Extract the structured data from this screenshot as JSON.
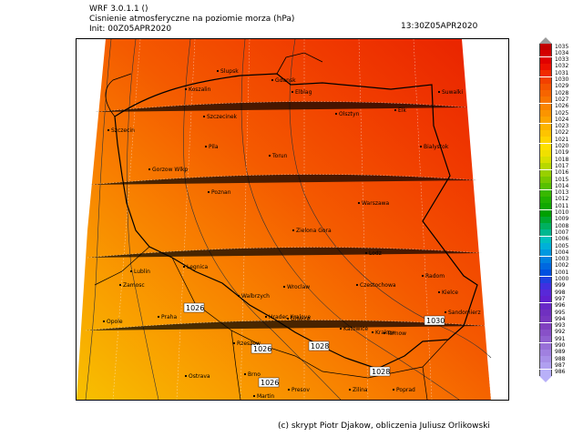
{
  "header": {
    "model": "WRF 3.0.1.1 ()",
    "title": "Cisnienie atmosferyczne na poziomie morza (hPa)",
    "init": "Init: 00Z05APR2020",
    "valid": "13:30Z05APR2020"
  },
  "footer": "(c) skrypt Piotr Djakow, obliczenia Juliusz Orlikowski",
  "isobar_labels": [
    "1026",
    "1026",
    "1028",
    "1026",
    "1028",
    "1030"
  ],
  "cities": [
    "Slupsk",
    "Koszalin",
    "Gdansk",
    "Elblag",
    "Suwalki",
    "Elk",
    "Olsztyn",
    "Szczecinek",
    "Szczecin",
    "Bialystok",
    "Pila",
    "Torun",
    "Gorzow Wlkp",
    "Poznan",
    "Warszawa",
    "Zielona Gora",
    "Lodz",
    "Radom",
    "Lublin",
    "Legnica",
    "Wroclaw",
    "Czestochowa",
    "Kielce",
    "Sandomierz",
    "Zamosc",
    "Walbrzych",
    "Opole",
    "Praha",
    "Hradec Kralove",
    "Gliwice",
    "Katowice",
    "Krakow",
    "Tarnow",
    "Rzeszow",
    "Ostrava",
    "Brno",
    "Zilina",
    "Poprad",
    "Presov",
    "Martin",
    "Trencin",
    "Kosice"
  ],
  "legend": {
    "levels": [
      1035,
      1034,
      1033,
      1032,
      1031,
      1030,
      1029,
      1028,
      1027,
      1026,
      1025,
      1024,
      1023,
      1022,
      1021,
      1020,
      1019,
      1018,
      1017,
      1016,
      1015,
      1014,
      1013,
      1012,
      1011,
      1010,
      1009,
      1008,
      1007,
      1006,
      1005,
      1004,
      1003,
      1002,
      1001,
      1000,
      999,
      998,
      997,
      996,
      995,
      994,
      993,
      992,
      991,
      990,
      989,
      988,
      987,
      986
    ],
    "colors": [
      "#c20000",
      "#d40000",
      "#e10000",
      "#ec1000",
      "#f02a00",
      "#f24000",
      "#f45400",
      "#f66400",
      "#f87400",
      "#fa8400",
      "#fb9400",
      "#fca400",
      "#fdb400",
      "#fec400",
      "#ffd400",
      "#ffe000",
      "#f0e000",
      "#d8e000",
      "#b8d800",
      "#98d000",
      "#78c800",
      "#58c000",
      "#38b800",
      "#20b000",
      "#10a800",
      "#00a000",
      "#00a830",
      "#00b060",
      "#00b890",
      "#00c0c0",
      "#00b0d8",
      "#0098e0",
      "#0080e0",
      "#0068e0",
      "#0050e0",
      "#2040e0",
      "#4030e0",
      "#5828d8",
      "#6020d0",
      "#6828c8",
      "#7030c0",
      "#7838c0",
      "#8040c0",
      "#8850c8",
      "#9060d0",
      "#9870d8",
      "#a080e0",
      "#a890e8",
      "#b0a0f0",
      "#b8b0f8"
    ]
  },
  "colors": {
    "pressure_1024": "#f9a000",
    "pressure_1026": "#f88000",
    "pressure_1028": "#f45a00",
    "pressure_1030": "#f03a00",
    "pressure_1032": "#e82000",
    "pressure_1022": "#f8c400"
  }
}
